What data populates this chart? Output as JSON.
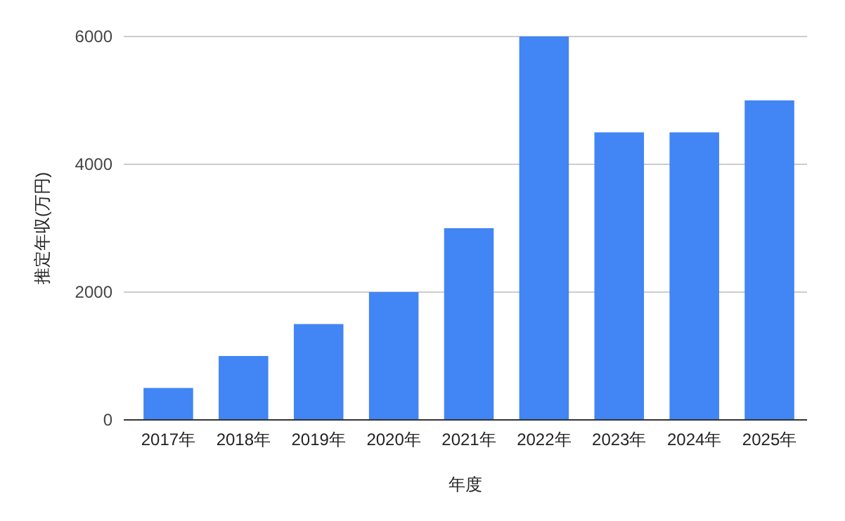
{
  "chart_data": {
    "type": "bar",
    "xlabel": "年度",
    "ylabel": "推定年収(万円)",
    "categories": [
      "2017年",
      "2018年",
      "2019年",
      "2020年",
      "2021年",
      "2022年",
      "2023年",
      "2024年",
      "2025年"
    ],
    "values": [
      500,
      1000,
      1500,
      2000,
      3000,
      6000,
      4500,
      4500,
      5000
    ],
    "color": "#4285f4",
    "ylim": [
      0,
      6000
    ],
    "yticks": [
      0,
      2000,
      4000,
      6000
    ],
    "grid": "y"
  }
}
